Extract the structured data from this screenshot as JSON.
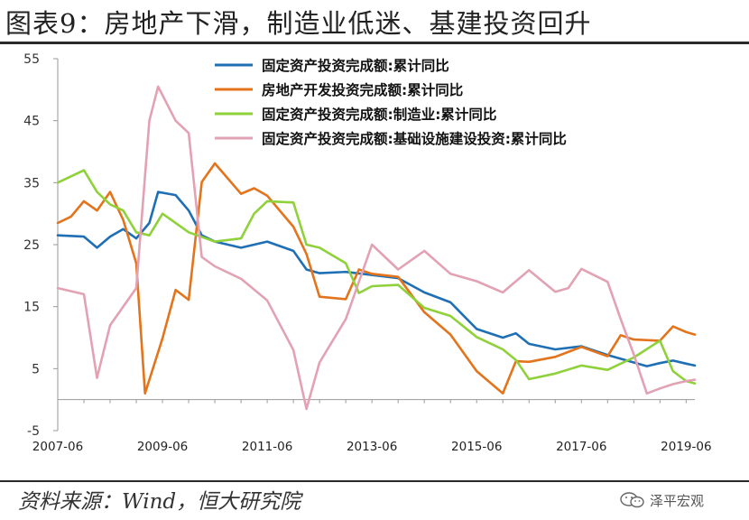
{
  "title": "图表9：房地产下滑，制造业低迷、基建投资回升",
  "source": "资料来源：Wind，恒大研究院",
  "brand": "泽平宏观",
  "chart_data": {
    "type": "line",
    "y_ticks": [
      55,
      45,
      35,
      25,
      15,
      5,
      -5
    ],
    "ylim": [
      -5,
      55
    ],
    "x_ticks": [
      "2007-06",
      "2009-06",
      "2011-06",
      "2013-06",
      "2015-06",
      "2017-06",
      "2019-06"
    ],
    "xlim": [
      "2007-06",
      "2019-08"
    ],
    "grid": false,
    "legend_position": "top-right",
    "series": [
      {
        "name": "固定资产投资完成额:累计同比",
        "color": "#1f6fb5",
        "points": [
          [
            "2007-06",
            26.5
          ],
          [
            "2007-12",
            26.3
          ],
          [
            "2008-03",
            24.5
          ],
          [
            "2008-06",
            26.3
          ],
          [
            "2008-09",
            27.5
          ],
          [
            "2008-12",
            26.0
          ],
          [
            "2009-03",
            28.5
          ],
          [
            "2009-05",
            33.5
          ],
          [
            "2009-09",
            33.0
          ],
          [
            "2009-12",
            30.5
          ],
          [
            "2010-03",
            26.5
          ],
          [
            "2010-06",
            25.5
          ],
          [
            "2010-12",
            24.5
          ],
          [
            "2011-06",
            25.5
          ],
          [
            "2011-12",
            24.0
          ],
          [
            "2012-03",
            21.0
          ],
          [
            "2012-06",
            20.4
          ],
          [
            "2012-12",
            20.6
          ],
          [
            "2013-06",
            20.1
          ],
          [
            "2013-12",
            19.6
          ],
          [
            "2014-06",
            17.3
          ],
          [
            "2014-12",
            15.7
          ],
          [
            "2015-06",
            11.4
          ],
          [
            "2015-12",
            10.0
          ],
          [
            "2016-03",
            10.7
          ],
          [
            "2016-06",
            9.0
          ],
          [
            "2016-12",
            8.1
          ],
          [
            "2017-06",
            8.6
          ],
          [
            "2017-12",
            7.2
          ],
          [
            "2018-06",
            6.0
          ],
          [
            "2018-09",
            5.4
          ],
          [
            "2018-12",
            5.9
          ],
          [
            "2019-03",
            6.3
          ],
          [
            "2019-06",
            5.8
          ],
          [
            "2019-08",
            5.5
          ]
        ]
      },
      {
        "name": "房地产开发投资完成额:累计同比",
        "color": "#e4741c",
        "points": [
          [
            "2007-06",
            28.5
          ],
          [
            "2007-09",
            29.5
          ],
          [
            "2007-12",
            32.0
          ],
          [
            "2008-03",
            30.5
          ],
          [
            "2008-06",
            33.5
          ],
          [
            "2008-09",
            29.0
          ],
          [
            "2008-12",
            22.0
          ],
          [
            "2009-02",
            1.0
          ],
          [
            "2009-06",
            9.9
          ],
          [
            "2009-09",
            17.7
          ],
          [
            "2009-12",
            16.1
          ],
          [
            "2010-03",
            35.1
          ],
          [
            "2010-06",
            38.1
          ],
          [
            "2010-12",
            33.2
          ],
          [
            "2011-03",
            34.1
          ],
          [
            "2011-06",
            32.9
          ],
          [
            "2011-12",
            27.9
          ],
          [
            "2012-03",
            23.5
          ],
          [
            "2012-06",
            16.6
          ],
          [
            "2012-12",
            16.2
          ],
          [
            "2013-03",
            21.0
          ],
          [
            "2013-06",
            20.3
          ],
          [
            "2013-12",
            19.8
          ],
          [
            "2014-06",
            14.1
          ],
          [
            "2014-12",
            10.5
          ],
          [
            "2015-06",
            4.6
          ],
          [
            "2015-12",
            1.0
          ],
          [
            "2016-03",
            6.2
          ],
          [
            "2016-06",
            6.1
          ],
          [
            "2016-12",
            6.9
          ],
          [
            "2017-06",
            8.5
          ],
          [
            "2017-12",
            7.0
          ],
          [
            "2018-03",
            10.4
          ],
          [
            "2018-06",
            9.7
          ],
          [
            "2018-12",
            9.5
          ],
          [
            "2019-03",
            11.8
          ],
          [
            "2019-06",
            10.9
          ],
          [
            "2019-08",
            10.5
          ]
        ]
      },
      {
        "name": "固定资产投资完成额:制造业:累计同比",
        "color": "#8fd13a",
        "points": [
          [
            "2007-06",
            35.0
          ],
          [
            "2007-12",
            37.0
          ],
          [
            "2008-03",
            33.5
          ],
          [
            "2008-06",
            31.5
          ],
          [
            "2008-09",
            30.5
          ],
          [
            "2008-12",
            27.0
          ],
          [
            "2009-03",
            26.5
          ],
          [
            "2009-06",
            30.0
          ],
          [
            "2009-12",
            27.0
          ],
          [
            "2010-06",
            25.5
          ],
          [
            "2010-12",
            26.0
          ],
          [
            "2011-03",
            30.0
          ],
          [
            "2011-06",
            32.0
          ],
          [
            "2011-12",
            31.8
          ],
          [
            "2012-03",
            25.0
          ],
          [
            "2012-06",
            24.5
          ],
          [
            "2012-12",
            22.0
          ],
          [
            "2013-03",
            17.2
          ],
          [
            "2013-06",
            18.3
          ],
          [
            "2013-12",
            18.5
          ],
          [
            "2014-06",
            14.8
          ],
          [
            "2014-12",
            13.5
          ],
          [
            "2015-06",
            10.1
          ],
          [
            "2015-12",
            8.1
          ],
          [
            "2016-03",
            6.4
          ],
          [
            "2016-06",
            3.3
          ],
          [
            "2016-12",
            4.2
          ],
          [
            "2017-06",
            5.5
          ],
          [
            "2017-12",
            4.8
          ],
          [
            "2018-06",
            6.8
          ],
          [
            "2018-12",
            9.5
          ],
          [
            "2019-03",
            4.6
          ],
          [
            "2019-06",
            3.0
          ],
          [
            "2019-08",
            2.6
          ]
        ]
      },
      {
        "name": "固定资产投资完成额:基础设施建设投资:累计同比",
        "color": "#e2a2b4",
        "points": [
          [
            "2007-06",
            18.0
          ],
          [
            "2007-12",
            17.0
          ],
          [
            "2008-03",
            3.5
          ],
          [
            "2008-06",
            12.0
          ],
          [
            "2008-12",
            18.0
          ],
          [
            "2009-03",
            45.0
          ],
          [
            "2009-05",
            50.5
          ],
          [
            "2009-09",
            45.0
          ],
          [
            "2009-12",
            43.0
          ],
          [
            "2010-03",
            23.0
          ],
          [
            "2010-06",
            21.5
          ],
          [
            "2010-12",
            19.5
          ],
          [
            "2011-06",
            16.0
          ],
          [
            "2011-12",
            8.0
          ],
          [
            "2012-03",
            -1.5
          ],
          [
            "2012-06",
            6.0
          ],
          [
            "2012-12",
            13.0
          ],
          [
            "2013-06",
            25.0
          ],
          [
            "2013-12",
            21.0
          ],
          [
            "2014-06",
            24.0
          ],
          [
            "2014-12",
            20.3
          ],
          [
            "2015-06",
            19.1
          ],
          [
            "2015-12",
            17.3
          ],
          [
            "2016-06",
            20.9
          ],
          [
            "2016-12",
            17.4
          ],
          [
            "2017-03",
            18.0
          ],
          [
            "2017-06",
            21.1
          ],
          [
            "2017-12",
            19.0
          ],
          [
            "2018-03",
            13.0
          ],
          [
            "2018-06",
            7.3
          ],
          [
            "2018-09",
            1.0
          ],
          [
            "2018-12",
            1.8
          ],
          [
            "2019-03",
            2.5
          ],
          [
            "2019-06",
            3.0
          ],
          [
            "2019-08",
            3.2
          ]
        ]
      }
    ]
  }
}
